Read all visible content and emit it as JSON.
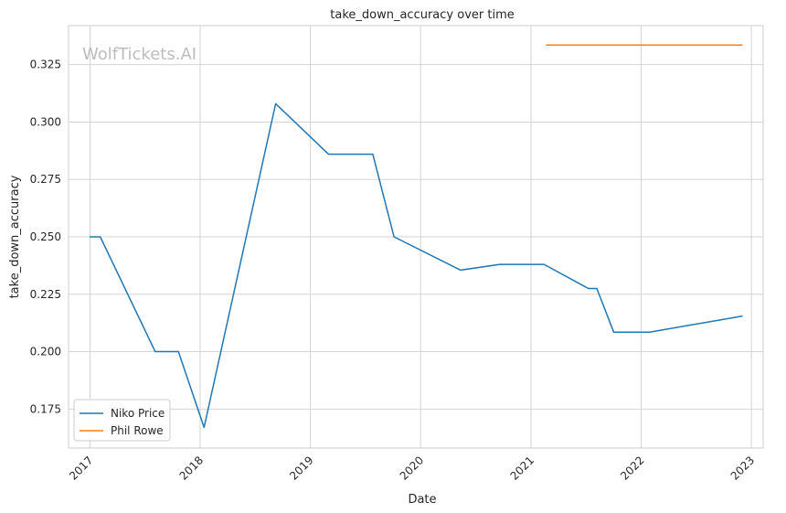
{
  "chart_data": {
    "type": "line",
    "title": "take_down_accuracy over time",
    "xlabel": "Date",
    "ylabel": "take_down_accuracy",
    "watermark": "WolfTickets.AI",
    "xlim": [
      "2016-10-22",
      "2023-02-09"
    ],
    "ylim": [
      0.158,
      0.342
    ],
    "x_ticks": [
      "2017",
      "2018",
      "2019",
      "2020",
      "2021",
      "2022",
      "2023"
    ],
    "y_ticks": [
      "0.175",
      "0.200",
      "0.225",
      "0.250",
      "0.275",
      "0.300",
      "0.325"
    ],
    "grid": true,
    "legend_position": "lower-left",
    "series": [
      {
        "name": "Niko Price",
        "color": "#1f77b4",
        "points": [
          {
            "x": "2016-12-31",
            "y": 0.25
          },
          {
            "x": "2017-02-04",
            "y": 0.25
          },
          {
            "x": "2017-08-05",
            "y": 0.2
          },
          {
            "x": "2017-10-21",
            "y": 0.2
          },
          {
            "x": "2018-01-14",
            "y": 0.167
          },
          {
            "x": "2018-09-08",
            "y": 0.308
          },
          {
            "x": "2019-03-02",
            "y": 0.286
          },
          {
            "x": "2019-07-27",
            "y": 0.286
          },
          {
            "x": "2019-10-05",
            "y": 0.25
          },
          {
            "x": "2020-05-13",
            "y": 0.2355
          },
          {
            "x": "2020-09-19",
            "y": 0.238
          },
          {
            "x": "2021-02-13",
            "y": 0.238
          },
          {
            "x": "2021-07-10",
            "y": 0.2275
          },
          {
            "x": "2021-08-07",
            "y": 0.2275
          },
          {
            "x": "2021-10-02",
            "y": 0.2085
          },
          {
            "x": "2022-01-29",
            "y": 0.2085
          },
          {
            "x": "2022-12-03",
            "y": 0.2155
          }
        ]
      },
      {
        "name": "Phil Rowe",
        "color": "#ff7f0e",
        "points": [
          {
            "x": "2021-02-20",
            "y": 0.3335
          },
          {
            "x": "2022-12-03",
            "y": 0.3335
          }
        ]
      }
    ]
  }
}
